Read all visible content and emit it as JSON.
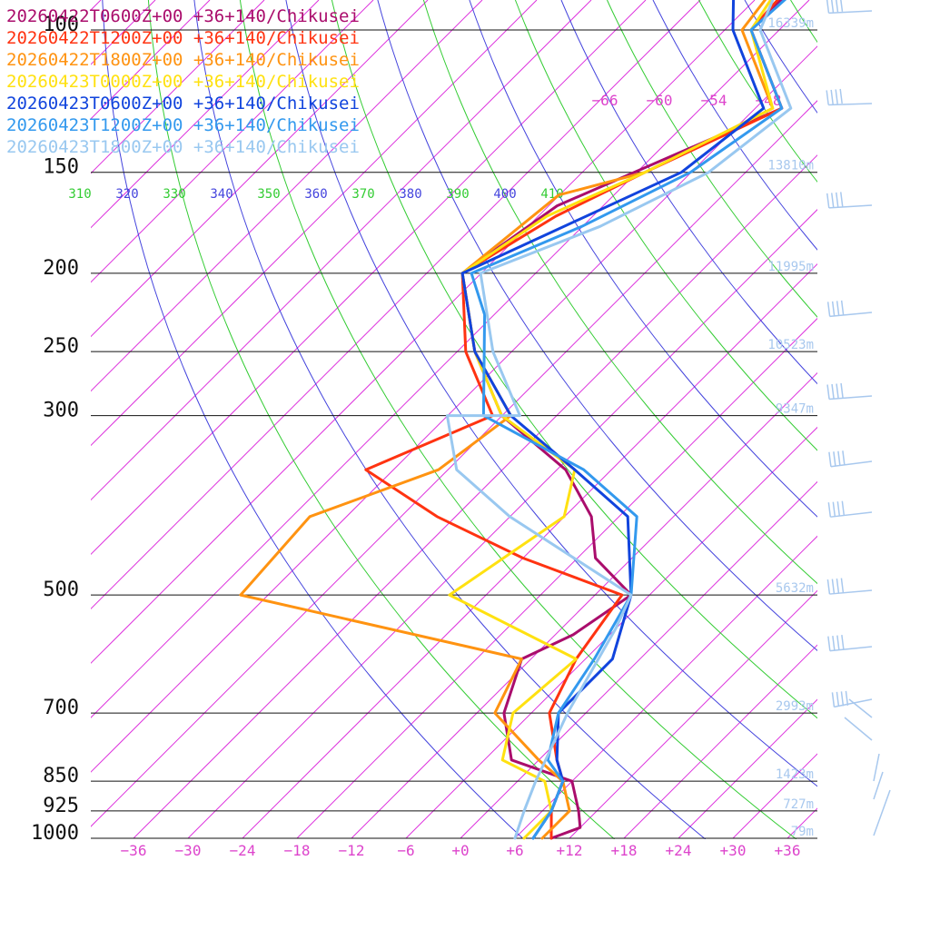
{
  "chart_data": {
    "type": "line",
    "diagram": "skew-T log-p",
    "title": "",
    "xlabel": "",
    "ylabel": "",
    "pressure_levels": [
      100,
      150,
      200,
      250,
      300,
      500,
      700,
      850,
      925,
      1000
    ],
    "pressure_tick_labels": [
      "100",
      "150",
      "200",
      "250",
      "300",
      "500",
      "700",
      "850",
      "925",
      "1000"
    ],
    "temperature_ticks": [
      -36,
      -30,
      -24,
      -18,
      -12,
      -6,
      0,
      6,
      12,
      18,
      24,
      30,
      36
    ],
    "temperature_tick_labels": [
      "−36",
      "−30",
      "−24",
      "−18",
      "−12",
      "−6",
      "+0",
      "+6",
      "+12",
      "+18",
      "+24",
      "+30",
      "+36"
    ],
    "upper_isotherm_labels": [
      "−66",
      "−60",
      "−54",
      "−48"
    ],
    "theta_labels": [
      "310",
      "320",
      "330",
      "340",
      "350",
      "360",
      "370",
      "380",
      "390",
      "400",
      "410"
    ],
    "height_labels": [
      {
        "p": 100,
        "text": "16339m"
      },
      {
        "p": 150,
        "text": "13810m"
      },
      {
        "p": 200,
        "text": "11995m"
      },
      {
        "p": 250,
        "text": "10523m"
      },
      {
        "p": 300,
        "text": "9347m"
      },
      {
        "p": 500,
        "text": "5632m"
      },
      {
        "p": 700,
        "text": "2993m"
      },
      {
        "p": 850,
        "text": "1423m"
      },
      {
        "p": 925,
        "text": "727m"
      },
      {
        "p": 1000,
        "text": "79m"
      }
    ],
    "colors": {
      "isobar": "#111111",
      "isotherm": "#dd33dd",
      "dry_adiabat_a": "#4444dd",
      "dry_adiabat_b": "#33cc33",
      "height": "#a8c8ee",
      "barb": "#a8c8ee"
    },
    "series": [
      {
        "name": "20260422T0600Z+00 +36+140/Chikusei",
        "color": "#aa0d6c",
        "points": [
          [
            -87,
            40
          ],
          [
            -72,
            60
          ],
          [
            -57,
            80
          ],
          [
            -57,
            100
          ],
          [
            -45,
            125
          ],
          [
            -59,
            165
          ],
          [
            -62,
            200
          ],
          [
            -52,
            250
          ],
          [
            -42,
            300
          ],
          [
            -29,
            350
          ],
          [
            -21,
            400
          ],
          [
            -16,
            450
          ],
          [
            -8,
            500
          ],
          [
            -10,
            560
          ],
          [
            -13,
            600
          ],
          [
            -9,
            700
          ],
          [
            -3,
            800
          ],
          [
            6,
            850
          ],
          [
            10,
            925
          ],
          [
            12,
            970
          ],
          [
            10,
            1000
          ]
        ]
      },
      {
        "name": "20260422T1200Z+00 +36+140/Chikusei",
        "color": "#ff3311",
        "points": [
          [
            -87,
            40
          ],
          [
            -72,
            60
          ],
          [
            -58,
            80
          ],
          [
            -57,
            100
          ],
          [
            -45,
            125
          ],
          [
            -53,
            150
          ],
          [
            -58,
            170
          ],
          [
            -62,
            200
          ],
          [
            -53,
            250
          ],
          [
            -43,
            300
          ],
          [
            -51,
            350
          ],
          [
            -38,
            400
          ],
          [
            -24,
            450
          ],
          [
            -9,
            500
          ],
          [
            -7,
            600
          ],
          [
            -4,
            700
          ],
          [
            2,
            800
          ],
          [
            5,
            850
          ],
          [
            7,
            925
          ],
          [
            10,
            1000
          ]
        ]
      },
      {
        "name": "20260422T1800Z+00 +36+140/Chikusei",
        "color": "#ff9311",
        "points": [
          [
            -88,
            40
          ],
          [
            -73,
            60
          ],
          [
            -60,
            80
          ],
          [
            -58,
            100
          ],
          [
            -46,
            125
          ],
          [
            -53,
            150
          ],
          [
            -60,
            160
          ],
          [
            -62,
            200
          ],
          [
            -52,
            250
          ],
          [
            -41,
            300
          ],
          [
            -43,
            350
          ],
          [
            -52,
            400
          ],
          [
            -51,
            500
          ],
          [
            -13,
            600
          ],
          [
            -10,
            700
          ],
          [
            0,
            800
          ],
          [
            5,
            850
          ],
          [
            9,
            925
          ],
          [
            9,
            1000
          ]
        ]
      },
      {
        "name": "20260423T0000Z+00 +36+140/Chikusei",
        "color": "#ffe111",
        "points": [
          [
            -89,
            40
          ],
          [
            -74,
            60
          ],
          [
            -60,
            80
          ],
          [
            -57,
            100
          ],
          [
            -46,
            125
          ],
          [
            -53,
            150
          ],
          [
            -59,
            170
          ],
          [
            -62,
            200
          ],
          [
            -52,
            250
          ],
          [
            -42,
            300
          ],
          [
            -28,
            350
          ],
          [
            -24,
            400
          ],
          [
            -28,
            500
          ],
          [
            -7,
            600
          ],
          [
            -8,
            700
          ],
          [
            -4,
            800
          ],
          [
            3,
            850
          ],
          [
            7,
            925
          ],
          [
            7,
            1000
          ]
        ]
      },
      {
        "name": "20260423T0600Z+00 +36+140/Chikusei",
        "color": "#1144dd",
        "points": [
          [
            -88,
            40
          ],
          [
            -73,
            60
          ],
          [
            -56,
            80
          ],
          [
            -63,
            90
          ],
          [
            -59,
            100
          ],
          [
            -47,
            125
          ],
          [
            -49,
            150
          ],
          [
            -62,
            200
          ],
          [
            -52,
            250
          ],
          [
            -41,
            300
          ],
          [
            -28,
            350
          ],
          [
            -17,
            400
          ],
          [
            -8,
            500
          ],
          [
            -3,
            600
          ],
          [
            -3,
            700
          ],
          [
            2,
            800
          ],
          [
            5,
            850
          ],
          [
            7,
            925
          ],
          [
            8,
            1000
          ]
        ]
      },
      {
        "name": "20260423T1200Z+00 +36+140/Chikusei",
        "color": "#3399ee",
        "points": [
          [
            -88,
            40
          ],
          [
            -74,
            60
          ],
          [
            -60,
            70
          ],
          [
            -56,
            80
          ],
          [
            -57,
            100
          ],
          [
            -45,
            125
          ],
          [
            -48,
            150
          ],
          [
            -54,
            175
          ],
          [
            -61,
            200
          ],
          [
            -55,
            225
          ],
          [
            -44,
            300
          ],
          [
            -27,
            350
          ],
          [
            -16,
            400
          ],
          [
            -8,
            500
          ],
          [
            -5,
            600
          ],
          [
            -3,
            700
          ],
          [
            1,
            800
          ],
          [
            5,
            850
          ],
          [
            7,
            925
          ],
          [
            8,
            1000
          ]
        ]
      },
      {
        "name": "20260423T1800Z+00 +36+140/Chikusei",
        "color": "#99c8f0",
        "points": [
          [
            -89,
            40
          ],
          [
            -75,
            60
          ],
          [
            -61,
            80
          ],
          [
            -56,
            100
          ],
          [
            -44,
            125
          ],
          [
            -46,
            150
          ],
          [
            -52,
            175
          ],
          [
            -60,
            200
          ],
          [
            -50,
            250
          ],
          [
            -40,
            300
          ],
          [
            -48,
            300
          ],
          [
            -41,
            350
          ],
          [
            -30,
            400
          ],
          [
            -8,
            500
          ],
          [
            -6,
            550
          ],
          [
            -2,
            700
          ],
          [
            2,
            850
          ],
          [
            4,
            925
          ],
          [
            6,
            1000
          ]
        ]
      }
    ]
  }
}
